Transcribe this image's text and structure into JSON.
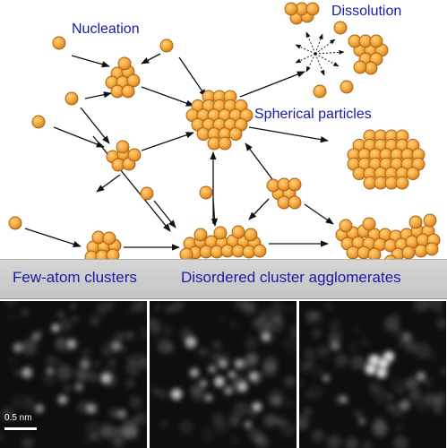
{
  "labels": {
    "nucleation": "Nucleation",
    "dissolution": "Dissolution",
    "spherical_particles": "Spherical particles",
    "few_atom_clusters": "Few-atom clusters",
    "disordered_agglomerates": "Disordered cluster agglomerates"
  },
  "micrographs": {
    "scale_bar_label": "0.5 nm",
    "panel_count": 3
  },
  "colors": {
    "label_text": "#1a1aa8",
    "atom_fill": "#f2a33a",
    "atom_stroke": "#a8600f",
    "arrow": "#111111",
    "band": "#cfcfcf"
  }
}
